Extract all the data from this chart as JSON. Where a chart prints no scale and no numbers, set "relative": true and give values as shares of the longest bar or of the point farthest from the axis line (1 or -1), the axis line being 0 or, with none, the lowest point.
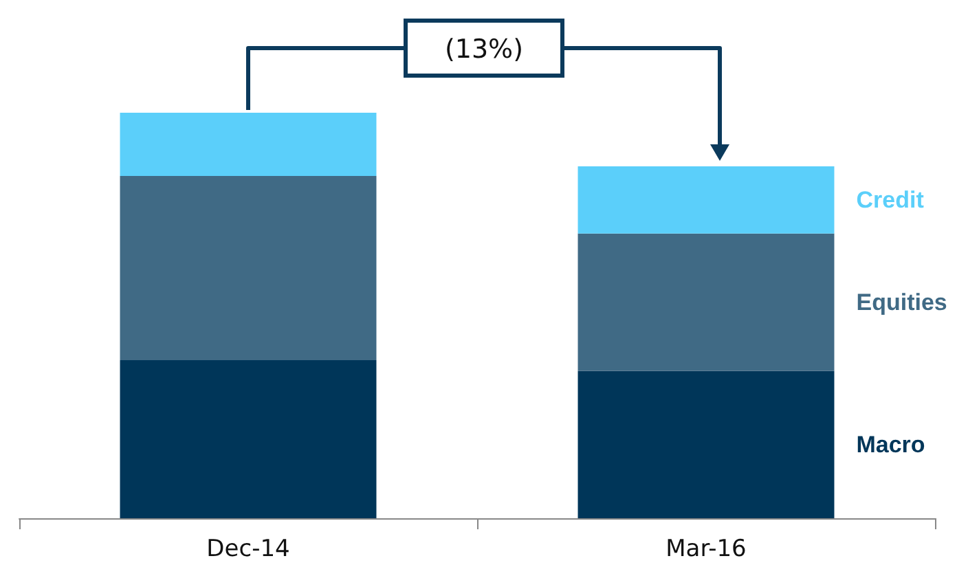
{
  "chart_data": {
    "type": "bar",
    "stacked": true,
    "relative": true,
    "categories": [
      "Dec-14",
      "Mar-16"
    ],
    "series": [
      {
        "name": "Macro",
        "color": "#003659",
        "values": [
          0.39,
          0.363
        ]
      },
      {
        "name": "Equities",
        "color": "#406a85",
        "values": [
          0.454,
          0.339
        ]
      },
      {
        "name": "Credit",
        "color": "#5bcffa",
        "values": [
          0.156,
          0.166
        ]
      }
    ],
    "annotations": [
      "(13%)"
    ],
    "grid": false
  }
}
